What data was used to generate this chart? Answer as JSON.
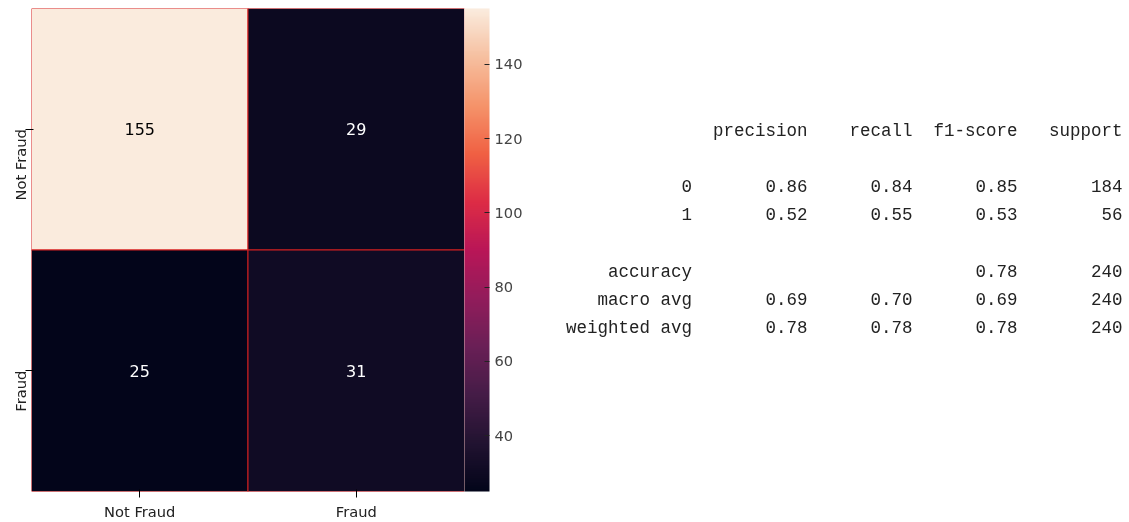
{
  "chart_data": [
    {
      "type": "heatmap",
      "categories": [
        "Not Fraud",
        "Fraud"
      ],
      "y_categories": [
        "Not Fraud",
        "Fraud"
      ],
      "cells": [
        [
          155,
          29
        ],
        [
          25,
          31
        ]
      ],
      "data_labels": true,
      "clim": [
        25,
        155
      ],
      "cticks": [
        40,
        60,
        80,
        100,
        120,
        140
      ]
    },
    {
      "type": "other",
      "annotations": [
        "              precision    recall  f1-score   support",
        "           0       0.86      0.84      0.85       184",
        "           1       0.52      0.55      0.53        56",
        "    accuracy                           0.78       240",
        "   macro avg       0.69      0.70      0.69       240",
        "weighted avg       0.78      0.78      0.78       240"
      ]
    }
  ]
}
